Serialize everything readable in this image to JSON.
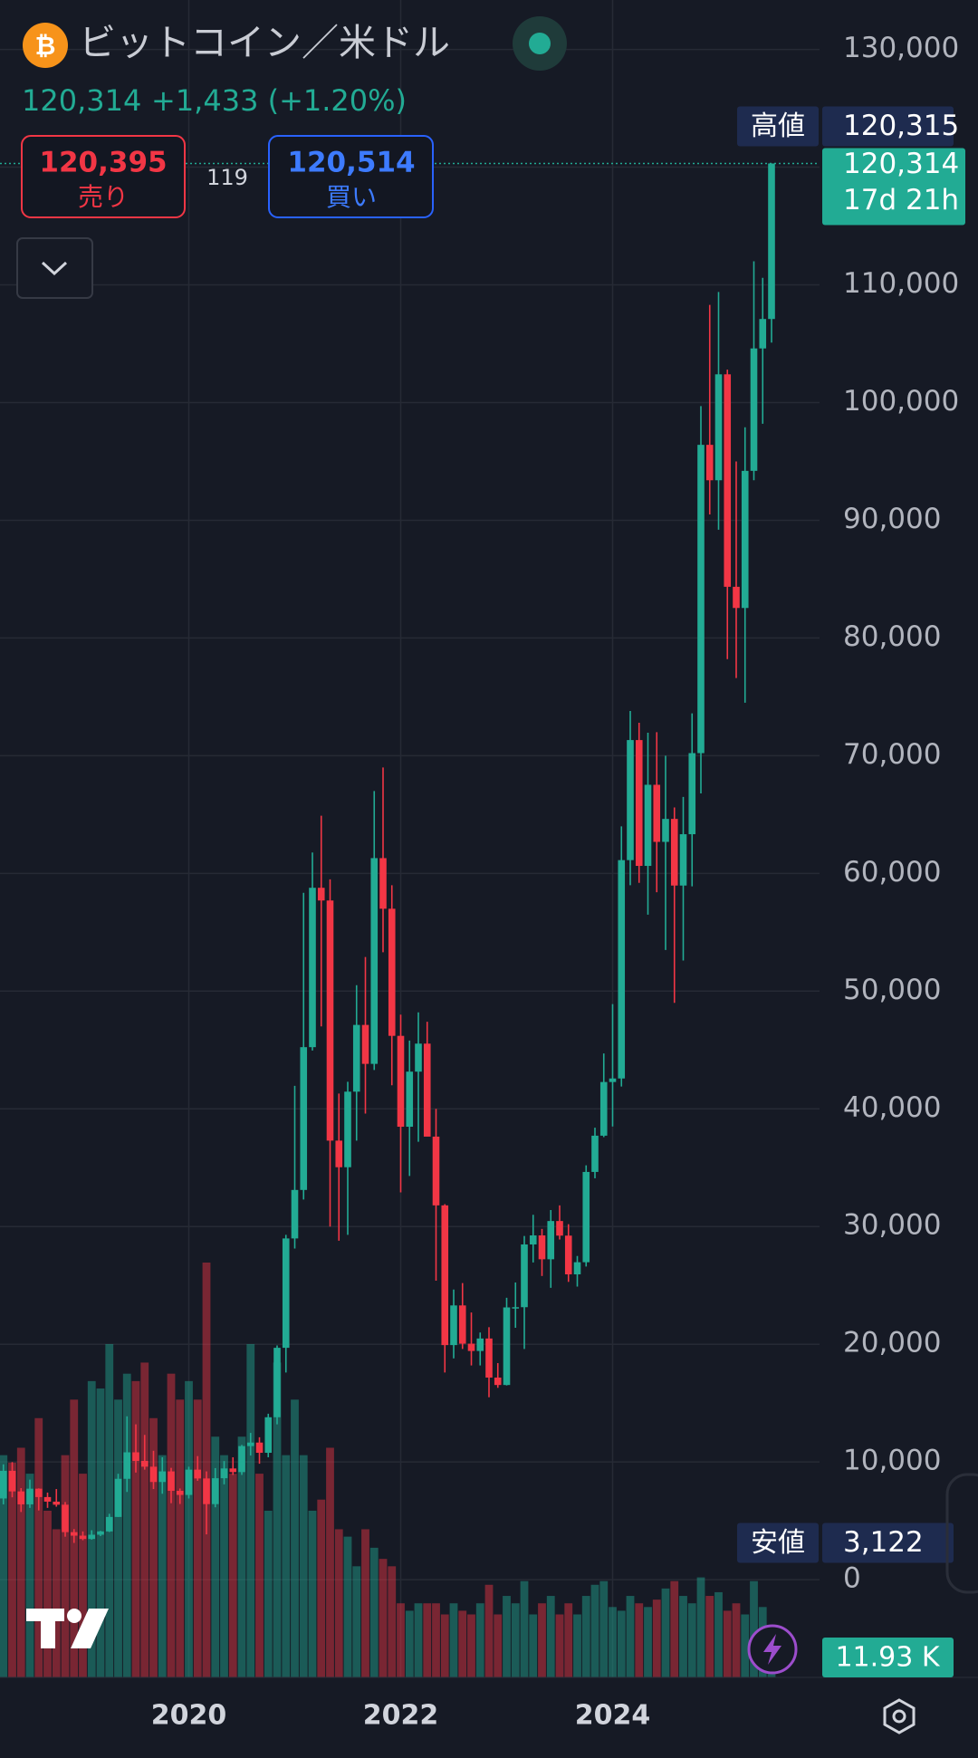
{
  "header": {
    "icon": "₿",
    "title": "ビットコイン／米ドル",
    "price": "120,314",
    "change": "+1,433 (+1.20%)",
    "sell_price": "120,395",
    "sell_label": "売り",
    "spread": "119",
    "buy_price": "120,514",
    "buy_label": "買い"
  },
  "chart_data": {
    "type": "candlestick",
    "categories": [
      null,
      null,
      null,
      null,
      null,
      null,
      null,
      null,
      null,
      null,
      null,
      null,
      null,
      null,
      null,
      null,
      null,
      null,
      null,
      null,
      null,
      null,
      "2020",
      null,
      null,
      null,
      null,
      null,
      null,
      null,
      null,
      null,
      null,
      null,
      null,
      null,
      null,
      null,
      null,
      null,
      null,
      null,
      null,
      null,
      null,
      null,
      "2022",
      null,
      null,
      null,
      null,
      null,
      null,
      null,
      null,
      null,
      null,
      null,
      null,
      null,
      null,
      null,
      null,
      null,
      null,
      null,
      null,
      null,
      null,
      null,
      "2024",
      null,
      null,
      null,
      null,
      null,
      null,
      null,
      null,
      null,
      null,
      null,
      null,
      null,
      null,
      null,
      null,
      null,
      null
    ],
    "up_color": "#22ab94",
    "down_color": "#f23645",
    "open": [
      10300,
      6900,
      9250,
      7500,
      6400,
      7730,
      7020,
      6630,
      6370,
      4040,
      3740,
      3460,
      3820,
      4100,
      5330,
      8570,
      10820,
      10090,
      9600,
      8300,
      9200,
      7550,
      7200,
      9350,
      8600,
      6420,
      8620,
      9450,
      9140,
      11350,
      11650,
      10780,
      13800,
      19700,
      28990,
      33110,
      45240,
      58780,
      57700,
      37300,
      35040,
      41460,
      47130,
      43820,
      61300,
      57000,
      46200,
      38480,
      43160,
      45540,
      37640,
      31800,
      19930,
      23300,
      20050,
      19430,
      20490,
      17170,
      16540,
      23130,
      23150,
      28480,
      29250,
      27220,
      30470,
      29230,
      25940,
      26970,
      34640,
      37720,
      42280,
      42580,
      61130,
      71330,
      60640,
      67530,
      62680,
      64630,
      58970,
      63330,
      70220,
      96410,
      93400,
      102400,
      84350,
      82550,
      94200,
      104600,
      107100
    ],
    "high": [
      11700,
      9800,
      9990,
      7780,
      8500,
      7760,
      7400,
      7700,
      6600,
      4300,
      4100,
      4200,
      4150,
      5600,
      9000,
      13880,
      13200,
      12300,
      10950,
      10400,
      9500,
      7750,
      9600,
      10500,
      9200,
      9480,
      10080,
      10400,
      11450,
      12470,
      12100,
      14100,
      19900,
      29300,
      41950,
      58350,
      61780,
      64900,
      59500,
      41300,
      42300,
      50500,
      52900,
      67000,
      69000,
      59000,
      48000,
      45800,
      48200,
      47400,
      40000,
      31900,
      24650,
      25200,
      22700,
      21000,
      21450,
      18400,
      23950,
      25250,
      29200,
      31000,
      29800,
      31400,
      31800,
      30200,
      27500,
      35200,
      38400,
      44700,
      48900,
      64000,
      73800,
      72800,
      71950,
      72000,
      70000,
      65600,
      66500,
      73600,
      99700,
      108300,
      109400,
      102800,
      95000,
      97900,
      112000,
      110600,
      120315
    ],
    "low": [
      6600,
      6400,
      7000,
      5750,
      6100,
      5880,
      6100,
      6200,
      3650,
      3122,
      3350,
      3400,
      3700,
      4050,
      5330,
      7450,
      9100,
      9350,
      7700,
      7300,
      6500,
      6430,
      6900,
      8400,
      3850,
      6150,
      8100,
      8900,
      8900,
      10550,
      9850,
      10400,
      13200,
      17600,
      28130,
      32300,
      44950,
      47000,
      30000,
      28800,
      29300,
      37300,
      39600,
      43300,
      53300,
      42000,
      32900,
      34300,
      37200,
      37700,
      25400,
      17600,
      18800,
      19600,
      18200,
      18200,
      15500,
      16300,
      16500,
      21400,
      19600,
      26950,
      25800,
      24800,
      28900,
      25300,
      24900,
      26600,
      34100,
      37600,
      38500,
      41900,
      59000,
      59200,
      56500,
      58400,
      53500,
      49000,
      52600,
      58900,
      66800,
      90500,
      89200,
      78200,
      76600,
      74500,
      93400,
      98200,
      105100
    ],
    "close": [
      6900,
      9250,
      7500,
      6400,
      7730,
      7020,
      6630,
      6370,
      4040,
      3740,
      3460,
      3820,
      4100,
      5330,
      8570,
      10820,
      10090,
      9600,
      8300,
      9200,
      7550,
      7200,
      9350,
      8600,
      6420,
      8620,
      9450,
      9140,
      11350,
      11650,
      10780,
      13800,
      19700,
      28990,
      33110,
      45240,
      58780,
      57700,
      37300,
      35040,
      41460,
      47130,
      43820,
      61300,
      57000,
      46200,
      38480,
      43160,
      45540,
      37640,
      31800,
      19930,
      23300,
      20050,
      19430,
      20490,
      17170,
      16540,
      23130,
      23150,
      28480,
      29250,
      27220,
      30470,
      29230,
      25940,
      26970,
      34640,
      37720,
      42280,
      42580,
      61130,
      71330,
      60640,
      67530,
      62680,
      64630,
      58970,
      63330,
      70220,
      96410,
      93400,
      102400,
      84350,
      82550,
      94200,
      104600,
      107100,
      120314
    ],
    "volume": {
      "values": [
        88,
        60,
        58,
        62,
        55,
        70,
        45,
        40,
        60,
        75,
        55,
        80,
        78,
        90,
        75,
        82,
        80,
        85,
        70,
        60,
        82,
        75,
        80,
        75,
        112,
        65,
        60,
        55,
        65,
        90,
        55,
        45,
        85,
        60,
        75,
        60,
        45,
        48,
        62,
        40,
        38,
        30,
        40,
        35,
        32,
        30,
        20,
        18,
        20,
        20,
        20,
        17,
        20,
        18,
        17,
        20,
        25,
        17,
        22,
        20,
        26,
        17,
        20,
        22,
        17,
        20,
        17,
        22,
        25,
        26,
        19,
        18,
        22,
        20,
        19,
        21,
        24,
        26,
        22,
        20,
        27,
        22,
        23,
        18,
        20,
        17,
        26,
        19,
        11.93
      ],
      "value_label": "11.93 K"
    },
    "ylim": [
      -8300,
      134200
    ],
    "yticks": [
      0,
      {
        "value": 10000,
        "label": "10,000"
      },
      {
        "value": 20000,
        "label": "20,000"
      },
      {
        "value": 30000,
        "label": "30,000"
      },
      {
        "value": 40000,
        "label": "40,000"
      },
      {
        "value": 50000,
        "label": "50,000"
      },
      {
        "value": 60000,
        "label": "60,000"
      },
      {
        "value": 70000,
        "label": "70,000"
      },
      {
        "value": 80000,
        "label": "80,000"
      },
      {
        "value": 90000,
        "label": "90,000"
      },
      {
        "value": 100000,
        "label": "100,000"
      },
      {
        "value": 110000,
        "label": "110,000"
      },
      {
        "value": 120000,
        "label": "120,000"
      },
      {
        "value": 130000,
        "label": "130,000"
      }
    ],
    "grid": true,
    "last_price": {
      "value": 120314,
      "value_label": "120,314",
      "countdown": "17d 21h"
    },
    "markers": [
      {
        "name": "高値",
        "value": 120315,
        "value_label": "120,315"
      },
      {
        "name": "安値",
        "value": 3122,
        "value_label": "3,122"
      }
    ]
  }
}
